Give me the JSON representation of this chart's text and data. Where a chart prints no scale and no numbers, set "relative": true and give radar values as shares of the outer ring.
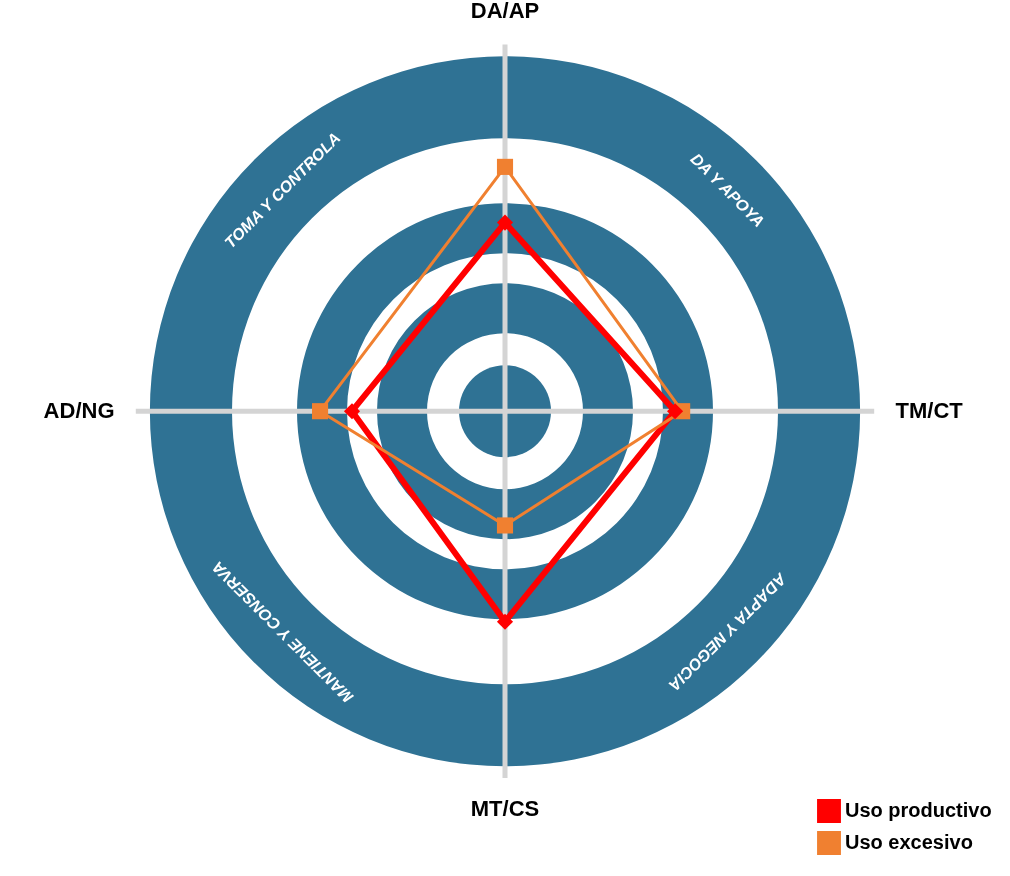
{
  "chart_data": {
    "type": "radar",
    "relative": true,
    "categories": [
      "DA/AP",
      "TM/CT",
      "MT/CS",
      "AD/NG"
    ],
    "series": [
      {
        "name": "Uso productivo",
        "color": "#ff0000",
        "marker": "diamond",
        "values": [
          0.535,
          0.479,
          0.597,
          0.431
        ]
      },
      {
        "name": "Uso excesivo",
        "color": "#f08030",
        "marker": "square",
        "values": [
          0.693,
          0.499,
          0.324,
          0.521
        ]
      }
    ],
    "annotations": [
      "TOMA Y CONTROLA",
      "DA Y APOYA",
      "ADAPTA Y NEGOCIA",
      "MANTIENE Y CONSERVA"
    ],
    "grid": true,
    "legend": "bottom right"
  }
}
